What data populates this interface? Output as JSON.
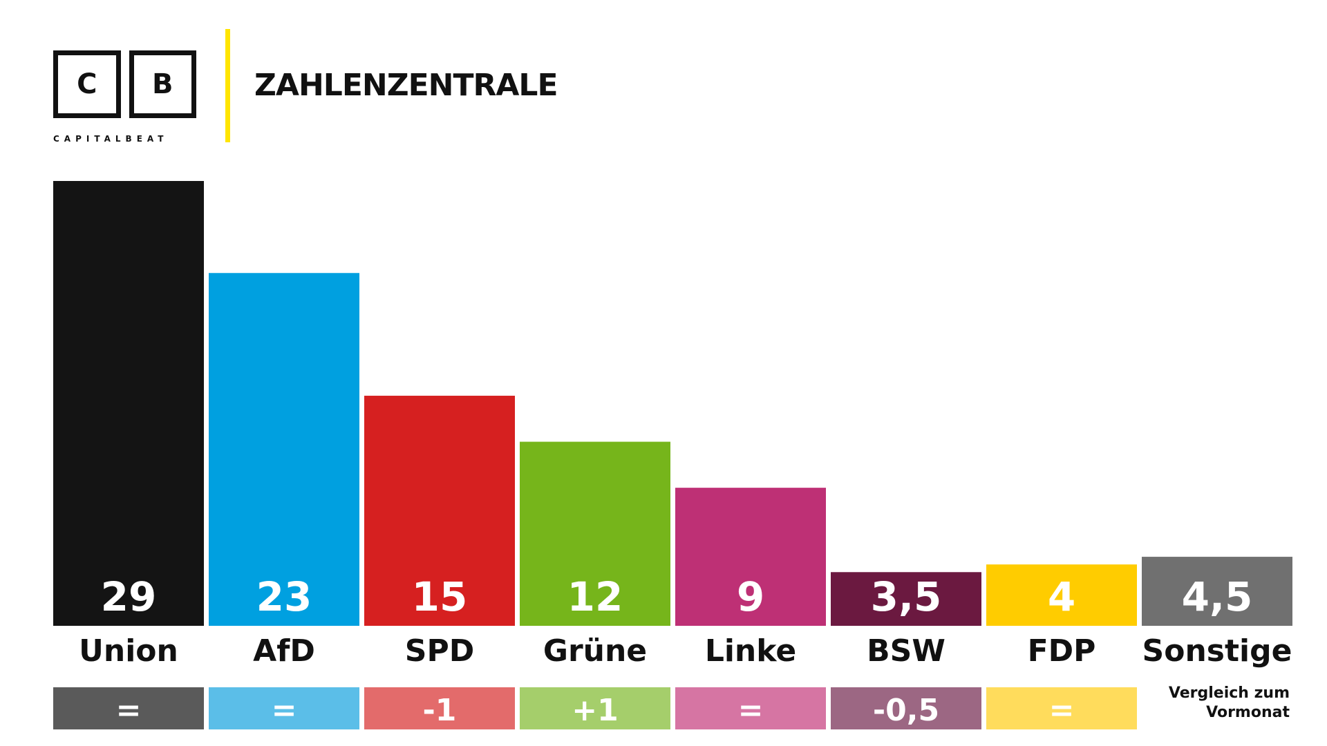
{
  "header": {
    "logo_letters": [
      "C",
      "B"
    ],
    "logo_wordmark": "CAPITALBEAT",
    "title": "ZAHLENZENTRALE",
    "accent_color": "#FFE500"
  },
  "chart_data": {
    "type": "bar",
    "title": "",
    "xlabel": "",
    "ylabel": "",
    "ylim": [
      0,
      29
    ],
    "grid": false,
    "categories": [
      "Union",
      "AfD",
      "SPD",
      "Grüne",
      "Linke",
      "BSW",
      "FDP",
      "Sonstige"
    ],
    "values": [
      29,
      23,
      15,
      12,
      9,
      3.5,
      4,
      4.5
    ],
    "value_labels": [
      "29",
      "23",
      "15",
      "12",
      "9",
      "3,5",
      "4",
      "4,5"
    ],
    "colors": [
      "#141414",
      "#00A0E0",
      "#D62020",
      "#76B51B",
      "#BE3075",
      "#6B1940",
      "#FFCC00",
      "#707070"
    ],
    "change_labels": [
      "=",
      "=",
      "-1",
      "+1",
      "=",
      "-0,5",
      "="
    ],
    "change_colors": [
      "#5A5A5A",
      "#5BBEE8",
      "#E36B6B",
      "#A5CE6B",
      "#D675A3",
      "#9C6783",
      "#FFDC5C"
    ],
    "change_note": "Vergleich zum Vormonat"
  }
}
